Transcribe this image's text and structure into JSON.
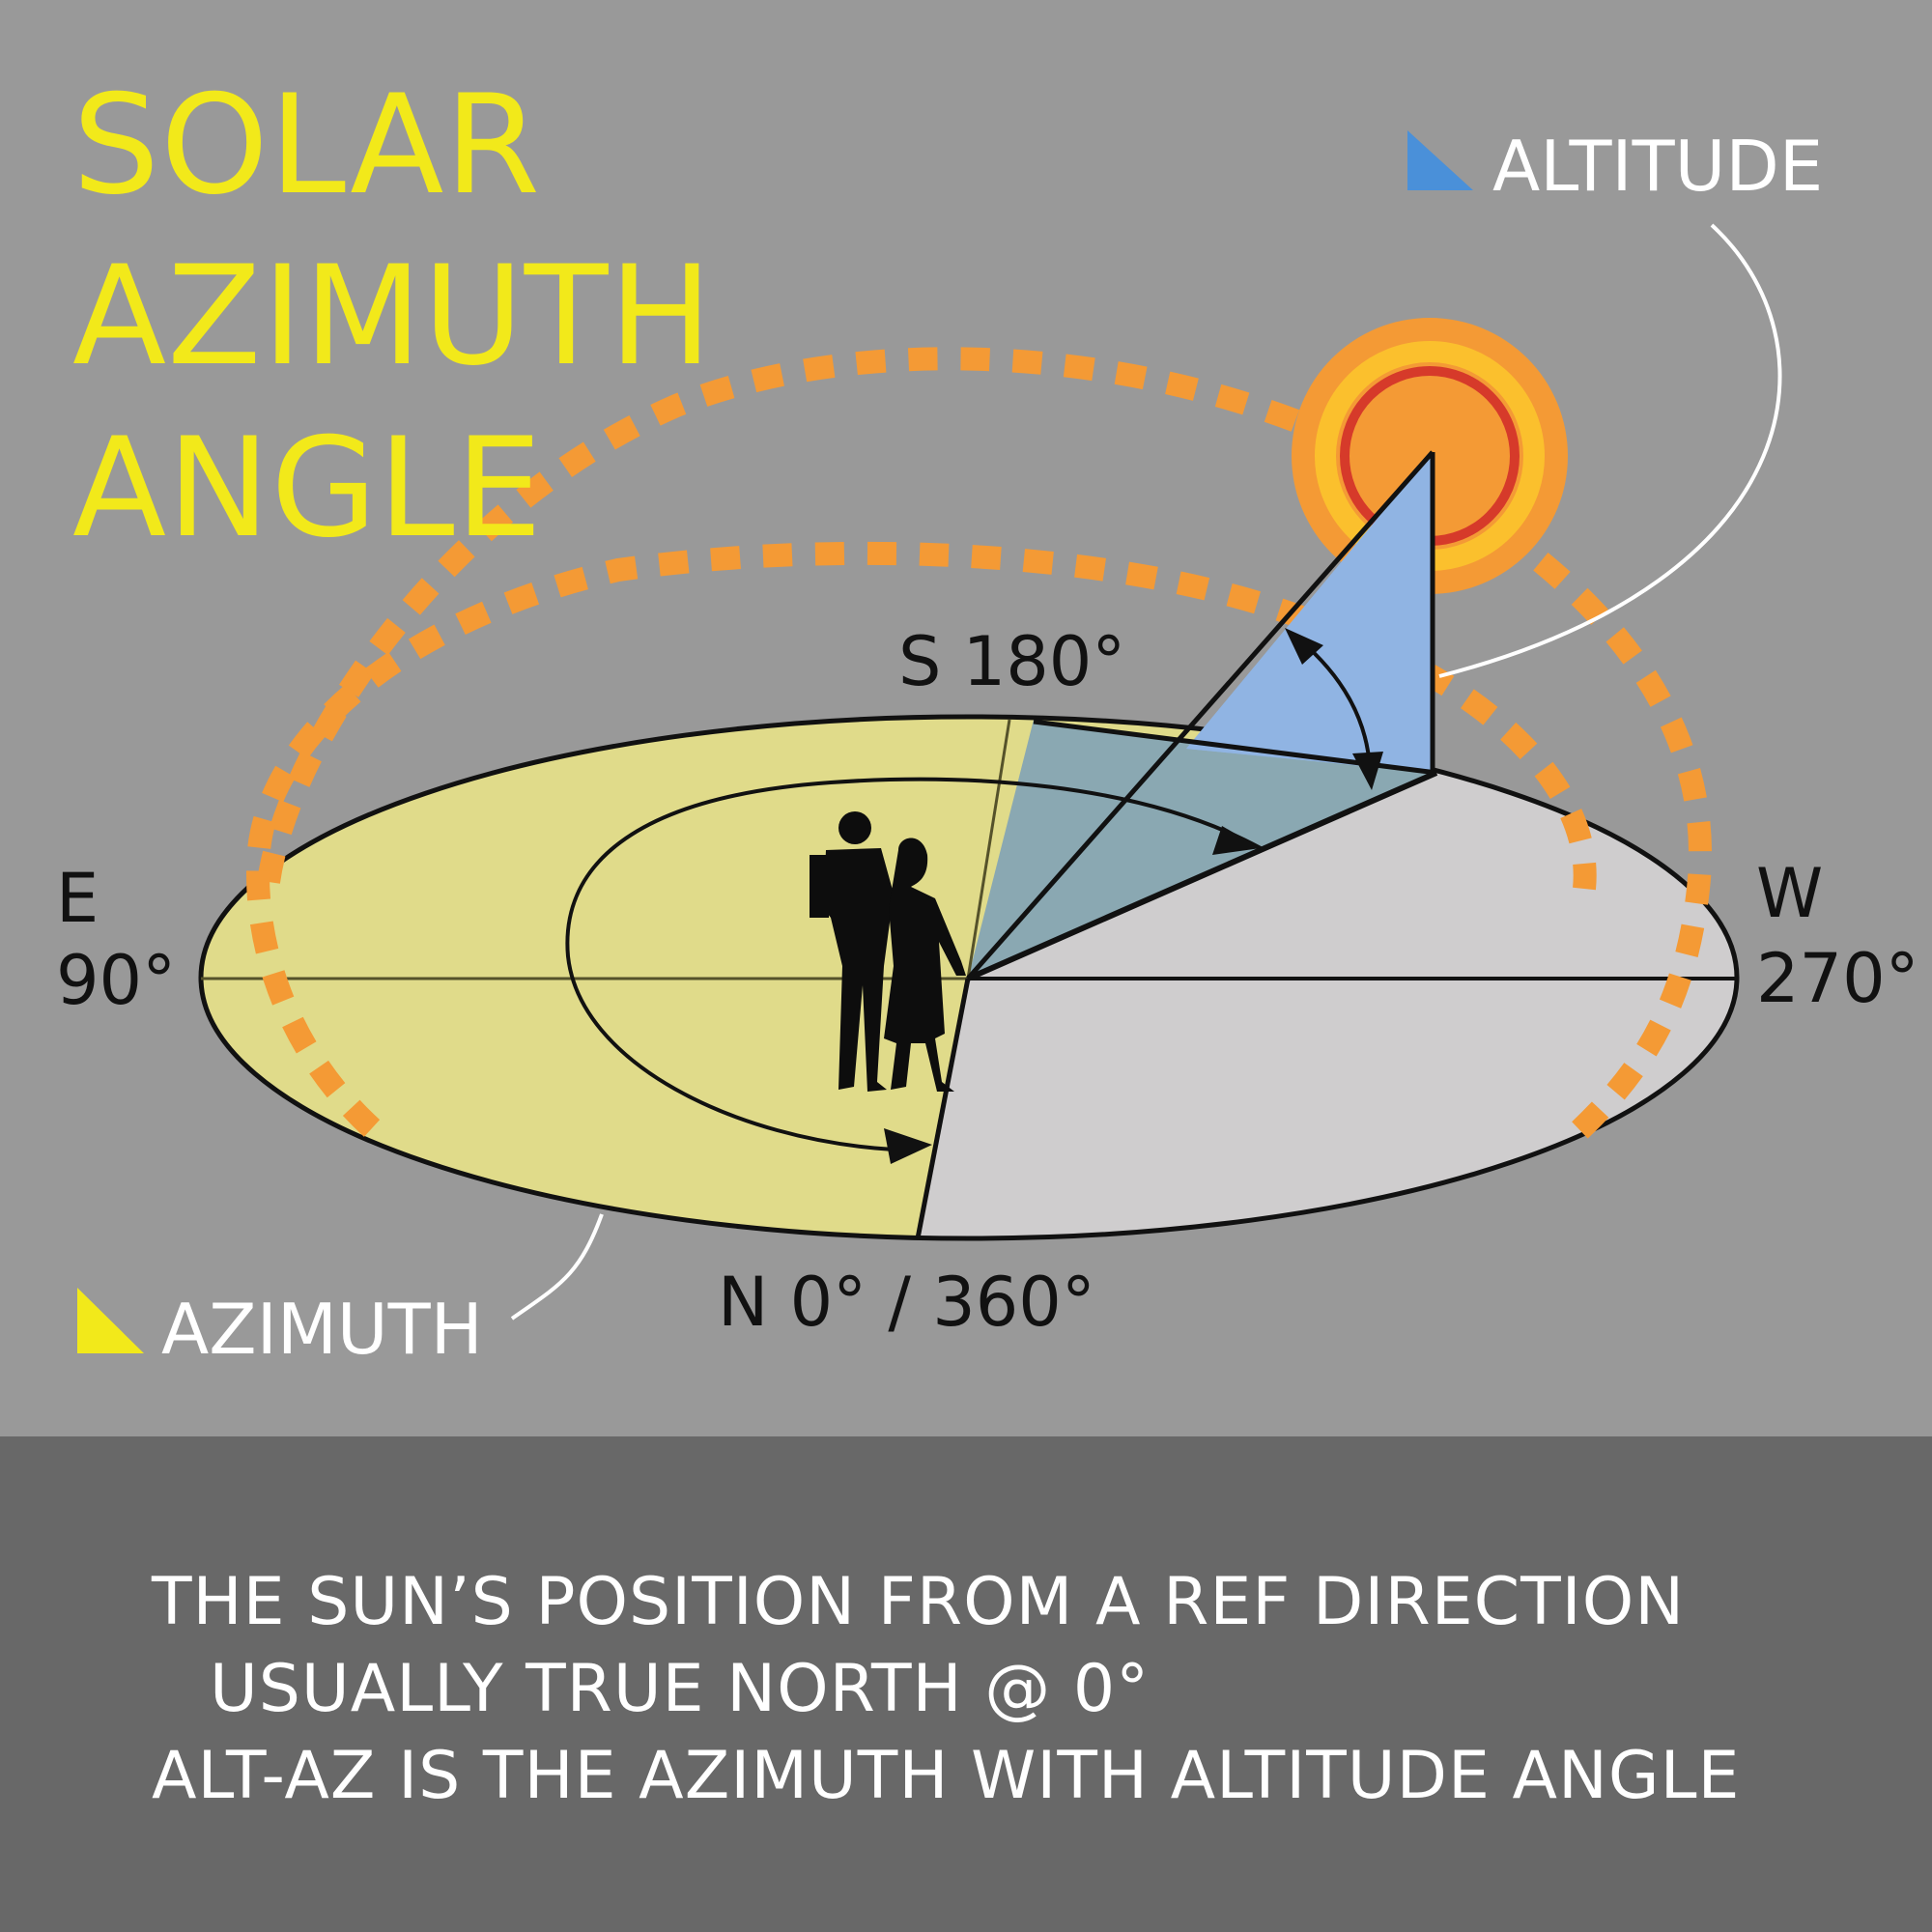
{
  "title": {
    "lines": [
      "SOLAR",
      "AZIMUTH",
      "ANGLE"
    ]
  },
  "legend": {
    "altitude": "ALTITUDE",
    "azimuth": "AZIMUTH"
  },
  "compass": {
    "south": "S 180°",
    "east_letter": "E",
    "east_degrees": "90°",
    "west_letter": "W",
    "west_degrees": "270°",
    "north": "N 0° / 360°"
  },
  "description": {
    "lines": [
      "THE SUN’S POSITION FROM A REF DIRECTION",
      "USUALLY TRUE NORTH @ 0°",
      "ALT-AZ IS THE AZIMUTH WITH ALTITUDE ANGLE"
    ]
  },
  "colors": {
    "background": "#999999",
    "band": "#686868",
    "title": "#f2e91a",
    "azimuth_fill": "#e0db8a",
    "west_fill": "#cfcdce",
    "altitude_triangle": "#90b4e3",
    "altitude_shadow": "#8aa8b2",
    "sun_path": "#f49a35",
    "sun_outer": "#f49a35",
    "sun_ring": "#fbc02d",
    "sun_inner_ring": "#d63a2a",
    "legend_blue": "#4a90d9",
    "legend_yellow": "#f2e91a"
  }
}
